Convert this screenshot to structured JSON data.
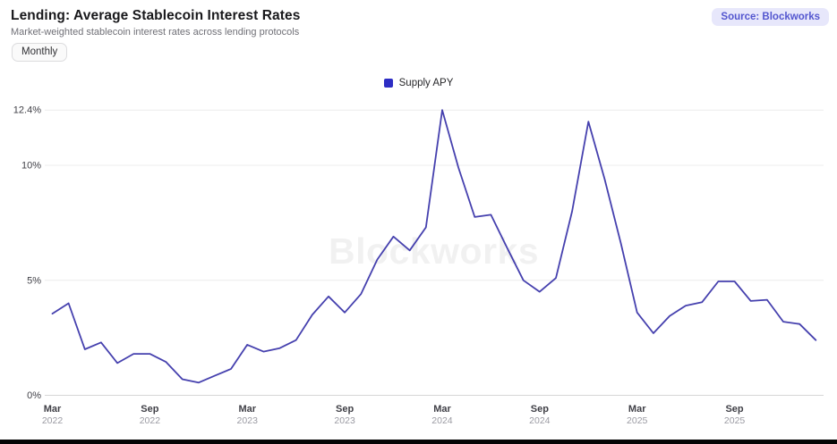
{
  "header": {
    "title": "Lending: Average Stablecoin Interest Rates",
    "subtitle": "Market-weighted stablecoin interest rates across lending protocols",
    "source_badge": "Source: Blockworks"
  },
  "controls": {
    "frequency_label": "Monthly"
  },
  "legend": {
    "items": [
      {
        "label": "Supply APY",
        "color": "#2d2dc4"
      }
    ]
  },
  "watermark": "Blockworks",
  "chart_data": {
    "type": "line",
    "title": "Lending: Average Stablecoin Interest Rates",
    "xlabel": "",
    "ylabel": "",
    "unit": "%",
    "ylim": [
      0,
      12.4
    ],
    "grid": "horizontal",
    "legend_position": "top-center",
    "x": [
      "2022-03",
      "2022-04",
      "2022-05",
      "2022-06",
      "2022-07",
      "2022-08",
      "2022-09",
      "2022-10",
      "2022-11",
      "2022-12",
      "2023-01",
      "2023-02",
      "2023-03",
      "2023-04",
      "2023-05",
      "2023-06",
      "2023-07",
      "2023-08",
      "2023-09",
      "2023-10",
      "2023-11",
      "2023-12",
      "2024-01",
      "2024-02",
      "2024-03",
      "2024-04",
      "2024-05",
      "2024-06",
      "2024-07",
      "2024-08",
      "2024-09",
      "2024-10",
      "2024-11",
      "2024-12",
      "2025-01",
      "2025-02",
      "2025-03",
      "2025-04",
      "2025-05",
      "2025-06",
      "2025-07",
      "2025-08",
      "2025-09",
      "2025-10",
      "2025-11",
      "2025-12",
      "2026-01",
      "2026-02"
    ],
    "series": [
      {
        "name": "Supply APY",
        "line_color": "#4540ae",
        "values": [
          3.55,
          4.0,
          2.0,
          2.3,
          1.4,
          1.8,
          1.8,
          1.45,
          0.7,
          0.55,
          0.85,
          1.15,
          2.2,
          1.9,
          2.05,
          2.4,
          3.5,
          4.3,
          3.6,
          4.4,
          5.9,
          6.9,
          6.3,
          7.3,
          12.4,
          9.9,
          7.75,
          7.85,
          6.4,
          5.0,
          4.5,
          5.1,
          8.0,
          11.9,
          9.4,
          6.6,
          3.6,
          2.7,
          3.45,
          3.9,
          4.05,
          4.95,
          4.95,
          4.1,
          4.15,
          3.2,
          3.1,
          2.4
        ]
      }
    ],
    "x_ticks": [
      {
        "month": "Mar",
        "year": "2022",
        "index": 0
      },
      {
        "month": "Sep",
        "year": "2022",
        "index": 6
      },
      {
        "month": "Mar",
        "year": "2023",
        "index": 12
      },
      {
        "month": "Sep",
        "year": "2023",
        "index": 18
      },
      {
        "month": "Mar",
        "year": "2024",
        "index": 24
      },
      {
        "month": "Sep",
        "year": "2024",
        "index": 30
      },
      {
        "month": "Mar",
        "year": "2025",
        "index": 36
      },
      {
        "month": "Sep",
        "year": "2025",
        "index": 42
      }
    ],
    "y_ticks": [
      {
        "label": "0%",
        "value": 0
      },
      {
        "label": "5%",
        "value": 5
      },
      {
        "label": "10%",
        "value": 10
      },
      {
        "label": "12.4%",
        "value": 12.4
      }
    ]
  }
}
